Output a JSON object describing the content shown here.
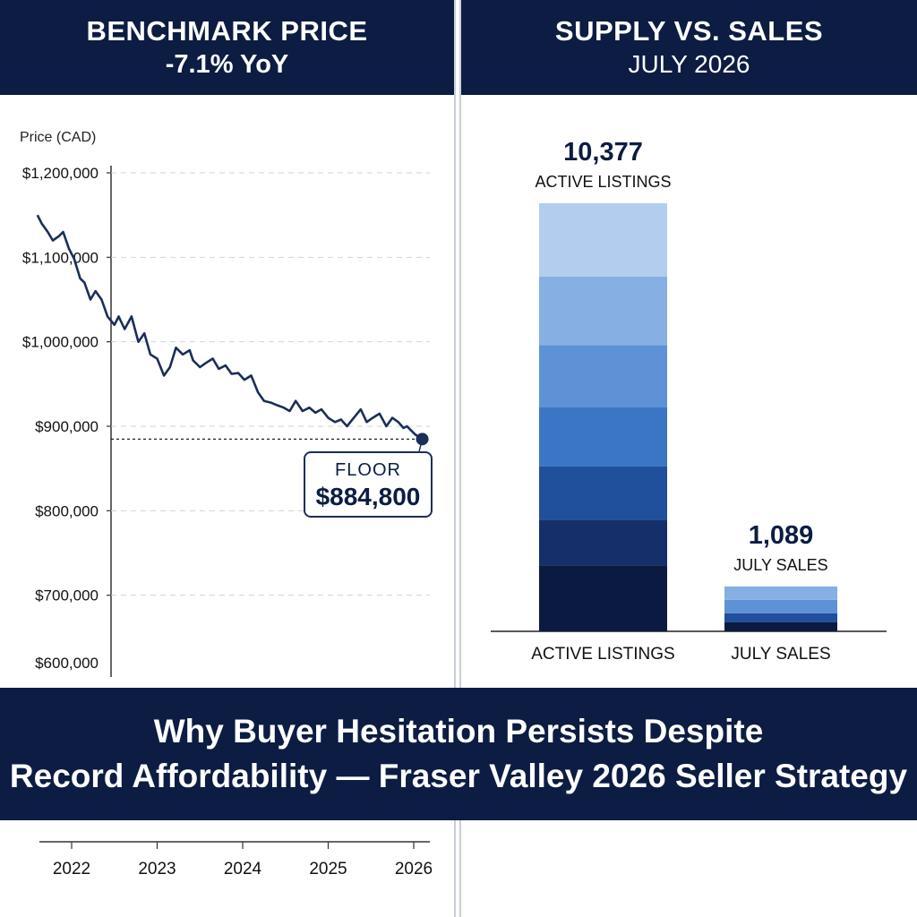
{
  "left_header": {
    "line1": "BENCHMARK PRICE",
    "line2": "-7.1% YoY"
  },
  "right_header": {
    "line1": "SUPPLY VS. SALES",
    "line2": "JULY 2026"
  },
  "banner": {
    "line1": "Why Buyer Hesitation Persists Despite",
    "line2": "Record Affordability — Fraser Valley 2026 Seller Strategy"
  },
  "floor_callout": {
    "label": "FLOOR",
    "value": "$884,800"
  },
  "colors": {
    "navy": "#0c1c43",
    "line": "#1b2e5a",
    "bar_shades": [
      "#0b1a40",
      "#142f6a",
      "#204f9c",
      "#3a76c4",
      "#5d93d6",
      "#86afe3",
      "#b3cdee"
    ]
  },
  "chart_data": [
    {
      "type": "line",
      "ylabel": "Price (CAD)",
      "ylim": [
        600000,
        1200000
      ],
      "yticks": [
        "$1,200,000",
        "$1,100,000",
        "$1,000,000",
        "$900,000",
        "$800,000",
        "$700,000",
        "$600,000"
      ],
      "ytick_values": [
        1200000,
        1100000,
        1000000,
        900000,
        800000,
        700000,
        600000
      ],
      "xlim": [
        2021.6,
        2026.2
      ],
      "xticks": [
        "2022",
        "2023",
        "2024",
        "2025",
        "2026"
      ],
      "xtick_values": [
        2022,
        2023,
        2024,
        2025,
        2026
      ],
      "grid": true,
      "series": [
        {
          "x": [
            2021.6,
            2021.65,
            2021.72,
            2021.78,
            2021.85,
            2021.9,
            2021.97,
            2022.03,
            2022.1,
            2022.15,
            2022.22,
            2022.28,
            2022.35,
            2022.42,
            2022.5,
            2022.55,
            2022.62,
            2022.7,
            2022.78,
            2022.85,
            2022.92,
            2023.0,
            2023.08,
            2023.15,
            2023.22,
            2023.3,
            2023.38,
            2023.42,
            2023.5,
            2023.57,
            2023.65,
            2023.72,
            2023.8,
            2023.87,
            2023.95,
            2024.02,
            2024.1,
            2024.18,
            2024.25,
            2024.33,
            2024.4,
            2024.48,
            2024.55,
            2024.62,
            2024.7,
            2024.78,
            2024.85,
            2024.92,
            2025.0,
            2025.08,
            2025.15,
            2025.22,
            2025.3,
            2025.38,
            2025.45,
            2025.52,
            2025.6,
            2025.68,
            2025.75,
            2025.82,
            2025.88,
            2025.92,
            2025.97,
            2026.02,
            2026.1
          ],
          "y": [
            1150000,
            1140000,
            1130000,
            1120000,
            1125000,
            1130000,
            1110000,
            1098000,
            1075000,
            1070000,
            1050000,
            1060000,
            1050000,
            1030000,
            1020000,
            1030000,
            1015000,
            1030000,
            1000000,
            1010000,
            985000,
            980000,
            960000,
            970000,
            993000,
            985000,
            990000,
            978000,
            970000,
            975000,
            980000,
            968000,
            972000,
            962000,
            963000,
            955000,
            960000,
            940000,
            930000,
            928000,
            925000,
            922000,
            918000,
            930000,
            918000,
            922000,
            916000,
            920000,
            910000,
            905000,
            908000,
            900000,
            910000,
            920000,
            905000,
            910000,
            915000,
            900000,
            910000,
            905000,
            898000,
            900000,
            895000,
            890000,
            884800
          ]
        }
      ],
      "annotation": {
        "label": "FLOOR",
        "value": 884800,
        "text": "$884,800"
      }
    },
    {
      "type": "bar",
      "categories": [
        "ACTIVE LISTINGS",
        "JULY SALES"
      ],
      "values": [
        10377,
        1089
      ],
      "value_labels": [
        "10,377",
        "1,089"
      ],
      "bar_titles": [
        "ACTIVE LISTINGS",
        "JULY SALES"
      ],
      "grid": false
    }
  ]
}
